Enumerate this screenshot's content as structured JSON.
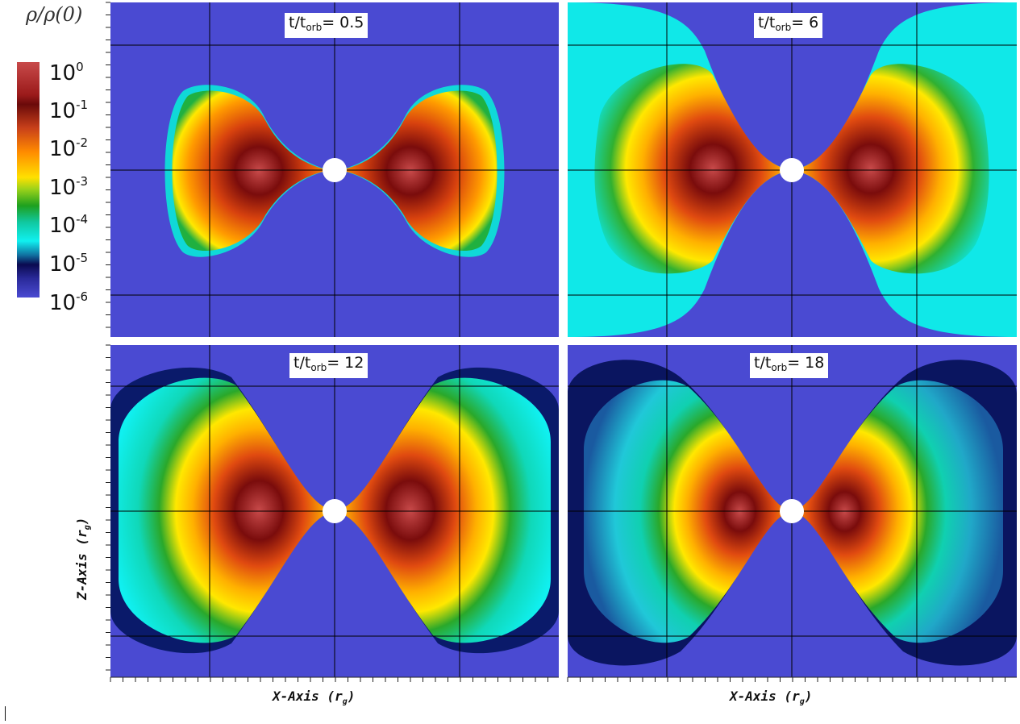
{
  "colorbar": {
    "title": "ρ/ρ(0)",
    "ticks": [
      {
        "base": "10",
        "exp": "0"
      },
      {
        "base": "10",
        "exp": "-1"
      },
      {
        "base": "10",
        "exp": "-2"
      },
      {
        "base": "10",
        "exp": "-3"
      },
      {
        "base": "10",
        "exp": "-4"
      },
      {
        "base": "10",
        "exp": "-5"
      },
      {
        "base": "10",
        "exp": "-6"
      }
    ]
  },
  "panels": [
    {
      "label_prefix": "t/t",
      "label_sub": "orb",
      "label_value": "= 0.5"
    },
    {
      "label_prefix": "t/t",
      "label_sub": "orb",
      "label_value": "= 6"
    },
    {
      "label_prefix": "t/t",
      "label_sub": "orb",
      "label_value": "= 12"
    },
    {
      "label_prefix": "t/t",
      "label_sub": "orb",
      "label_value": "= 18"
    }
  ],
  "axes": {
    "x_label": "X-Axis",
    "x_unit": "(r",
    "x_unit_sub": "g",
    "x_unit_close": ")",
    "z_label": "Z-Axis",
    "z_unit": "(r",
    "z_unit_sub": "g",
    "z_unit_close": ")"
  },
  "colors": {
    "background": "#4a4ad2",
    "dark_red": "#6a0a0a",
    "red": "#c84a4a",
    "orange": "#ff8a00",
    "yellow": "#ffe000",
    "green": "#1ea01e",
    "cyan": "#10f0f0",
    "navy": "#0a0a50"
  }
}
